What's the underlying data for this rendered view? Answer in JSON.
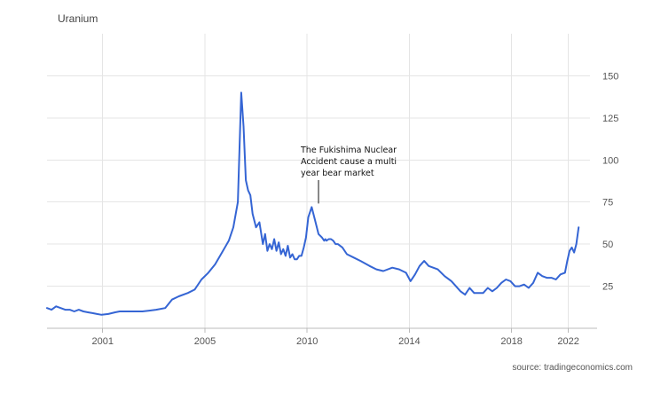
{
  "chart_data": {
    "type": "line",
    "title": "Uranium",
    "source": "source: tradingeconomics.com",
    "xlim": [
      1998.8,
      2022.7
    ],
    "ylim": [
      0,
      175
    ],
    "x_ticks": [
      {
        "value": 2001.25,
        "label": "2001"
      },
      {
        "value": 2005.75,
        "label": "2005"
      },
      {
        "value": 2010.25,
        "label": "2010"
      },
      {
        "value": 2014.75,
        "label": "2014"
      },
      {
        "value": 2019.25,
        "label": "2018"
      },
      {
        "value": 2021.75,
        "label": "2022"
      }
    ],
    "y_ticks": [
      25,
      50,
      75,
      100,
      125,
      150
    ],
    "grid": true,
    "line_color": "#3565d4",
    "series": [
      {
        "x": [
          1998.8,
          1999.0,
          1999.2,
          1999.4,
          1999.6,
          1999.8,
          2000.0,
          2000.2,
          2000.4,
          2000.6,
          2000.8,
          2001.0,
          2001.2,
          2001.5,
          2001.8,
          2002.0,
          2002.3,
          2002.6,
          2003.0,
          2003.3,
          2003.6,
          2004.0,
          2004.3,
          2004.6,
          2005.0,
          2005.3,
          2005.6,
          2005.9,
          2006.2,
          2006.5,
          2006.8,
          2007.0,
          2007.2,
          2007.35,
          2007.45,
          2007.55,
          2007.65,
          2007.75,
          2007.85,
          2008.0,
          2008.15,
          2008.3,
          2008.4,
          2008.5,
          2008.6,
          2008.7,
          2008.8,
          2008.9,
          2009.0,
          2009.1,
          2009.2,
          2009.3,
          2009.4,
          2009.5,
          2009.6,
          2009.7,
          2009.8,
          2009.9,
          2010.0,
          2010.1,
          2010.2,
          2010.3,
          2010.45,
          2010.6,
          2010.75,
          2010.9,
          2011.0,
          2011.05,
          2011.1,
          2011.2,
          2011.3,
          2011.4,
          2011.5,
          2011.6,
          2011.8,
          2012.0,
          2012.3,
          2012.6,
          2013.0,
          2013.3,
          2013.6,
          2014.0,
          2014.3,
          2014.6,
          2014.8,
          2015.0,
          2015.2,
          2015.4,
          2015.6,
          2015.8,
          2016.0,
          2016.3,
          2016.6,
          2016.8,
          2017.0,
          2017.2,
          2017.4,
          2017.6,
          2017.8,
          2018.0,
          2018.2,
          2018.4,
          2018.6,
          2018.8,
          2019.0,
          2019.2,
          2019.4,
          2019.6,
          2019.8,
          2020.0,
          2020.2,
          2020.4,
          2020.6,
          2020.8,
          2021.0,
          2021.2,
          2021.4,
          2021.6,
          2021.7,
          2021.8,
          2021.9,
          2022.0,
          2022.1,
          2022.2
        ],
        "values": [
          12,
          11,
          13,
          12,
          11,
          11,
          10,
          11,
          10,
          9.5,
          9,
          8.5,
          8,
          8.5,
          9.5,
          10,
          10,
          10,
          10,
          10.5,
          11,
          12,
          17,
          19,
          21,
          23,
          29,
          33,
          38,
          45,
          52,
          60,
          75,
          140,
          120,
          88,
          82,
          79,
          68,
          60,
          63,
          50,
          56,
          46,
          50,
          47,
          53,
          46,
          51,
          44,
          47,
          43,
          49,
          42,
          44,
          41,
          41,
          43,
          43,
          48,
          54,
          66,
          72,
          64,
          56,
          54,
          52,
          53,
          52,
          53,
          53,
          52,
          50,
          50,
          48,
          44,
          42,
          40,
          37,
          35,
          34,
          36,
          35,
          33,
          28,
          32,
          37,
          40,
          37,
          36,
          35,
          31,
          28,
          25,
          22,
          20,
          24,
          21,
          21,
          21,
          24,
          22,
          24,
          27,
          29,
          28,
          25,
          25,
          26,
          24,
          27,
          33,
          31,
          30,
          30,
          29,
          32,
          33,
          40,
          46,
          48,
          45,
          50,
          60
        ]
      }
    ],
    "annotation": {
      "lines": [
        "The Fukishima Nuclear",
        "Accident cause a multi",
        "year bear market"
      ],
      "target_x": 2010.75,
      "target_y": 72
    }
  }
}
